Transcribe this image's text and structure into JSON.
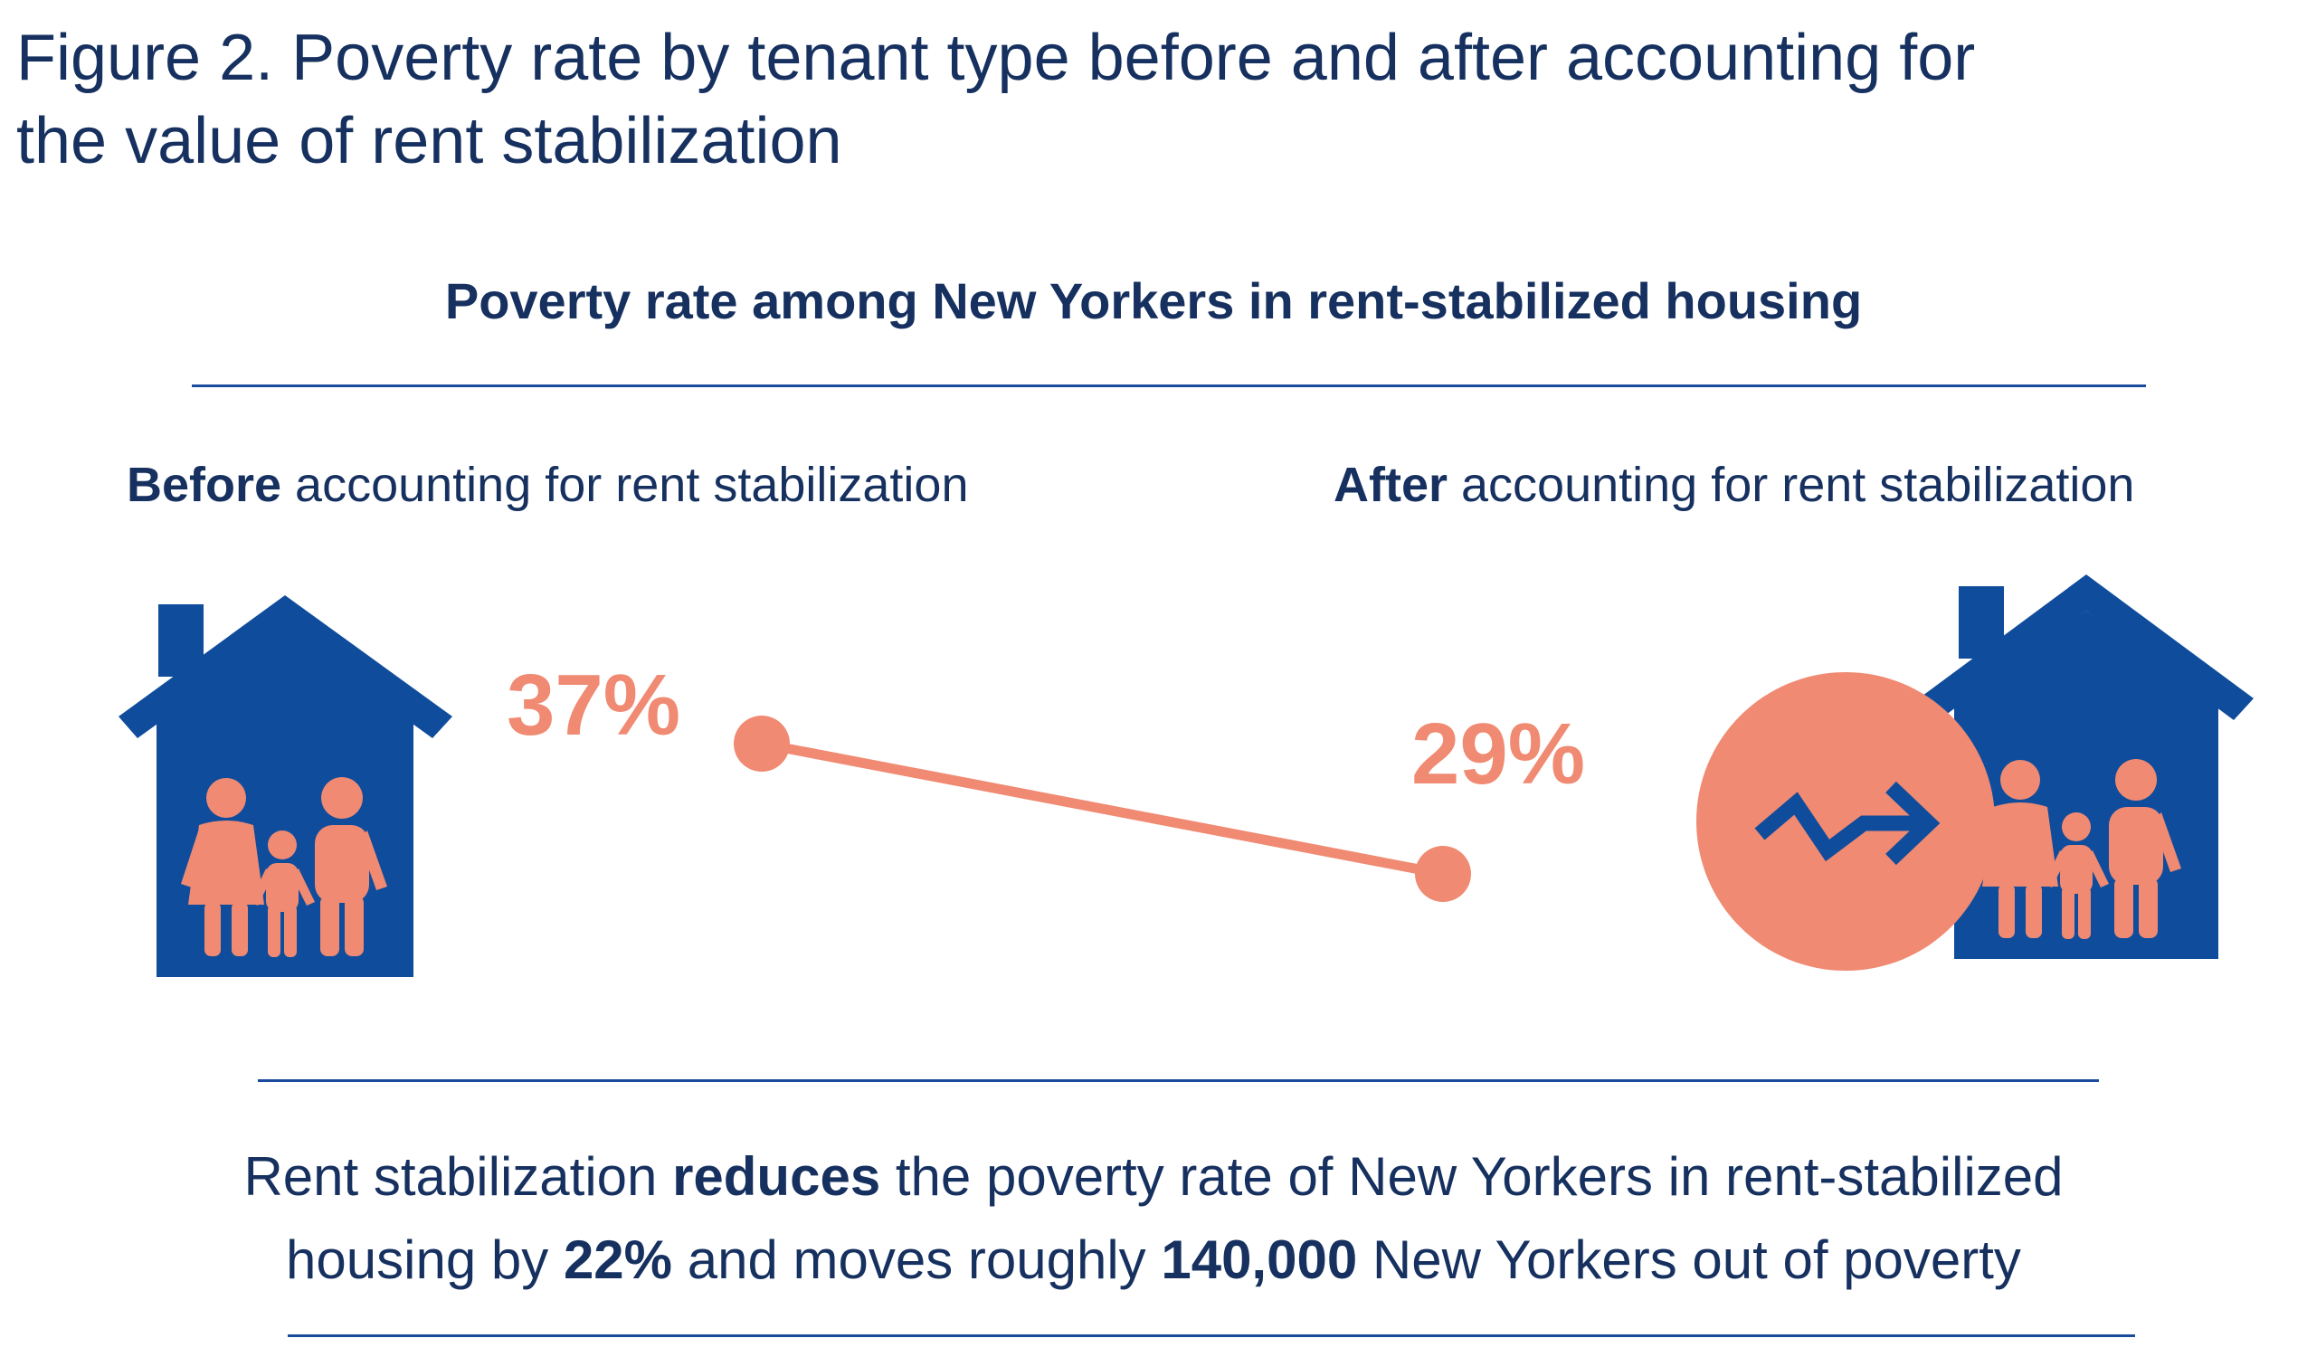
{
  "figure_title_line1": "Figure 2. Poverty rate by tenant type before and after accounting for",
  "figure_title_line2": "the value of rent stabilization",
  "subtitle": "Poverty rate among New Yorkers in rent-stabilized housing",
  "before_label": {
    "bold": "Before",
    "rest": " accounting for rent stabilization"
  },
  "after_label": {
    "bold": "After",
    "rest": " accounting for rent stabilization"
  },
  "summary": {
    "line1_a": "Rent stabilization ",
    "line1_b": "reduces",
    "line1_c": " the poverty rate of New Yorkers in rent-stabilized",
    "line2_a": "housing by ",
    "line2_b": "22%",
    "line2_c": " and moves roughly ",
    "line2_d": "140,000",
    "line2_e": " New Yorkers out of poverty"
  },
  "colors": {
    "navy": "#16305f",
    "house_blue": "#0f4c9c",
    "salmon": "#f08a72"
  },
  "icons": {
    "before": "house-family-icon",
    "after": "house-family-icon",
    "trend": "trend-arrow-icon"
  },
  "chart_data": {
    "type": "line",
    "categories": [
      "Before accounting for rent stabilization",
      "After accounting for rent stabilization"
    ],
    "values": [
      37,
      29
    ],
    "value_labels": [
      "37%",
      "29%"
    ],
    "unit": "%",
    "grid": false
  }
}
